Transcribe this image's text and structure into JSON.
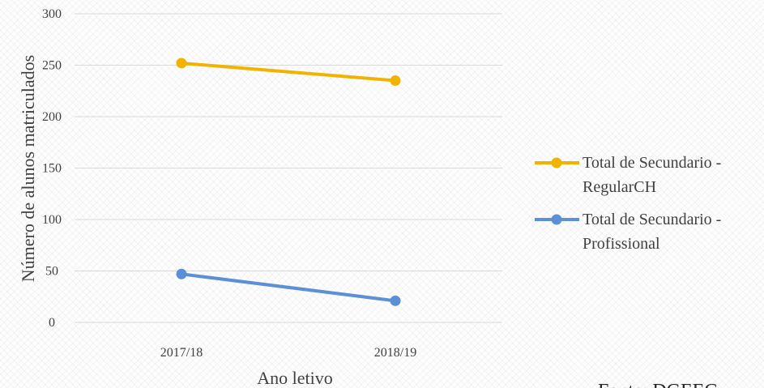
{
  "chart_data": {
    "type": "line",
    "title": "",
    "xlabel": "Ano letivo",
    "ylabel": "Número de alunos matriculados",
    "categories": [
      "2017/18",
      "2018/19"
    ],
    "ylim": [
      0,
      300
    ],
    "yticks": [
      0,
      50,
      100,
      150,
      200,
      250,
      300
    ],
    "grid": true,
    "legend_position": "right",
    "series": [
      {
        "name": "Total de Secundario - RegularCH",
        "legend_lines": [
          "Total de Secundario -",
          "RegularCH"
        ],
        "values": [
          252,
          235
        ],
        "color": "#F0B400"
      },
      {
        "name": "Total de Secundario - Profissional",
        "legend_lines": [
          "Total de Secundario -",
          "Profissional"
        ],
        "values": [
          47,
          21
        ],
        "color": "#5B8FD6"
      }
    ],
    "source": "Fonte: DGEEC"
  }
}
